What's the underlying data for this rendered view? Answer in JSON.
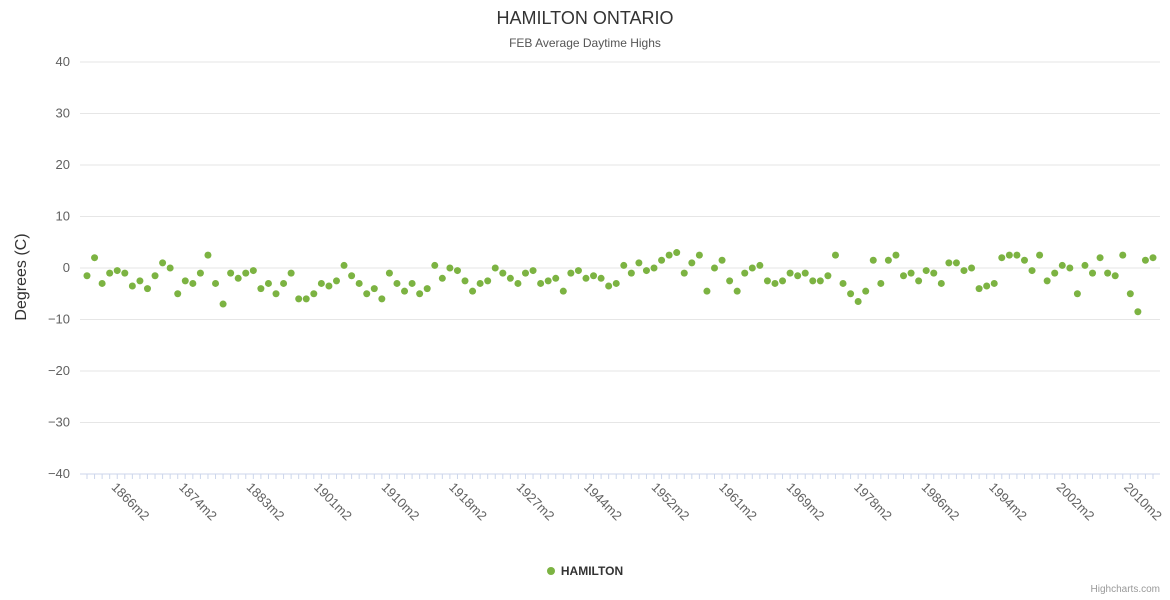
{
  "chart": {
    "title": "HAMILTON ONTARIO",
    "subtitle": "FEB Average Daytime Highs",
    "y_axis_title": "Degrees (C)",
    "legend_label": "HAMILTON",
    "credits": "Highcharts.com"
  },
  "chart_data": {
    "type": "scatter",
    "title": "HAMILTON ONTARIO",
    "subtitle": "FEB Average Daytime Highs",
    "xlabel": "",
    "ylabel": "Degrees (C)",
    "ylim": [
      -40,
      40
    ],
    "y_ticks": [
      -40,
      -30,
      -20,
      -10,
      0,
      10,
      20,
      30,
      40
    ],
    "grid": true,
    "legend_position": "bottom",
    "x_tick_labels": [
      "1866m2",
      "1874m2",
      "1883m2",
      "1901m2",
      "1910m2",
      "1918m2",
      "1927m2",
      "1944m2",
      "1952m2",
      "1961m2",
      "1969m2",
      "1978m2",
      "1986m2",
      "1994m2",
      "2002m2",
      "2010m2"
    ],
    "series": [
      {
        "name": "HAMILTON",
        "color": "#7cb342",
        "values": [
          -1.5,
          2,
          -3,
          -1,
          -0.5,
          -1,
          -3.5,
          -2.5,
          -4,
          -1.5,
          1,
          0,
          -5,
          -2.5,
          -3,
          -1,
          2.5,
          -3,
          -7,
          -1,
          -2,
          -1,
          -0.5,
          -4,
          -3,
          -5,
          -3,
          -1,
          -6,
          -6,
          -5,
          -3,
          -3.5,
          -2.5,
          0.5,
          -1.5,
          -3,
          -5,
          -4,
          -6,
          -1,
          -3,
          -4.5,
          -3,
          -5,
          -4,
          0.5,
          -2,
          0,
          -0.5,
          -2.5,
          -4.5,
          -3,
          -2.5,
          0,
          -1,
          -2,
          -3,
          -1,
          -0.5,
          -3,
          -2.5,
          -2,
          -4.5,
          -1,
          -0.5,
          -2,
          -1.5,
          -2,
          -3.5,
          -3,
          0.5,
          -1,
          1,
          -0.5,
          0,
          1.5,
          2.5,
          3,
          -1,
          1,
          2.5,
          -4.5,
          0,
          1.5,
          -2.5,
          -4.5,
          -1,
          0,
          0.5,
          -2.5,
          -3,
          -2.5,
          -1,
          -1.5,
          -1,
          -2.5,
          -2.5,
          -1.5,
          2.5,
          -3,
          -5,
          -6.5,
          -4.5,
          1.5,
          -3,
          1.5,
          2.5,
          -1.5,
          -1,
          -2.5,
          -0.5,
          -1,
          -3,
          1,
          1,
          -0.5,
          0,
          -4,
          -3.5,
          -3,
          2,
          2.5,
          2.5,
          1.5,
          -0.5,
          2.5,
          -2.5,
          -1,
          0.5,
          0,
          -5,
          0.5,
          -1,
          2,
          -1,
          -1.5,
          2.5,
          -5,
          -8.5,
          1.5,
          2
        ]
      }
    ],
    "axis_line_color": "#ccd6eb",
    "grid_color": "#e6e6e6",
    "label_color": "#606060"
  }
}
